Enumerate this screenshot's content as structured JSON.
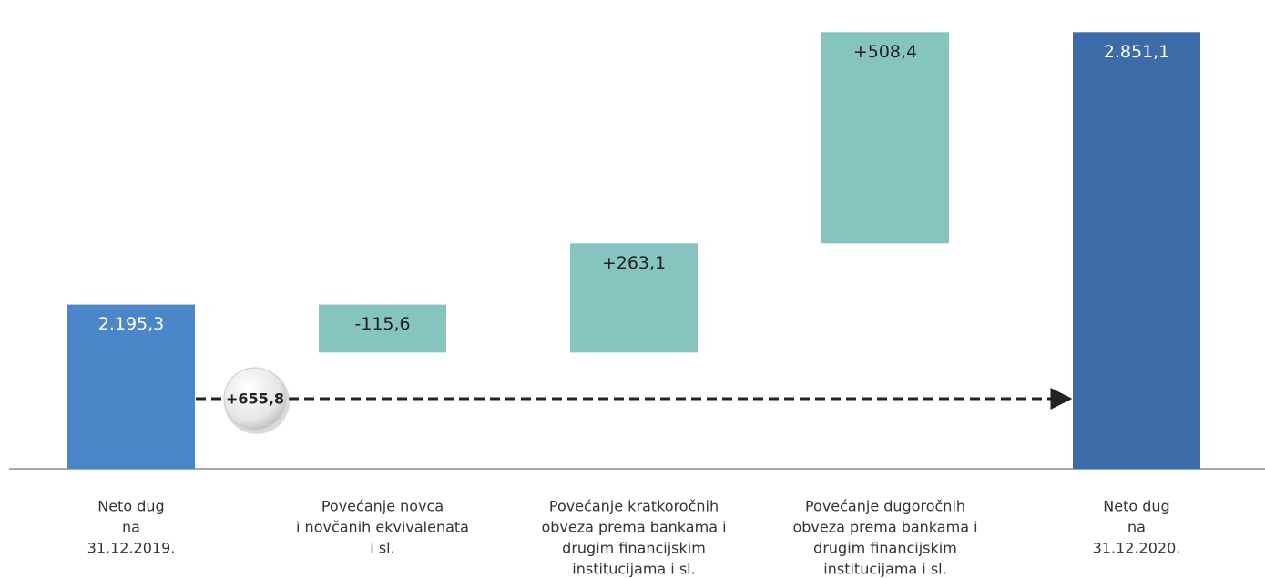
{
  "chart_data": {
    "type": "waterfall",
    "categories": [
      [
        "Neto dug",
        "na",
        "31.12.2019."
      ],
      [
        "Povećanje novca",
        "i novčanih ekvivalenata",
        "i sl."
      ],
      [
        "Povećanje kratkoročnih",
        "obveza prema bankama i",
        "drugim financijskim",
        "institucijama i sl."
      ],
      [
        "Povećanje dugoročnih",
        "obveza prema bankama i",
        "drugim financijskim",
        "institucijama i sl."
      ],
      [
        "Neto dug",
        "na",
        "31.12.2020."
      ]
    ],
    "values": [
      2195.3,
      -115.6,
      263.1,
      508.4,
      2851.1
    ],
    "value_labels": [
      "2.195,3",
      "-115,6",
      "+263,1",
      "+508,4",
      "2.851,1"
    ],
    "measure": [
      "absolute",
      "relative",
      "relative",
      "relative",
      "total"
    ],
    "colors": [
      "#4a86c8",
      "#86c4bf",
      "#86c4bf",
      "#86c4bf",
      "#3b6ba8"
    ],
    "ylim": [
      1800,
      2900
    ],
    "annotation": "+655,8"
  }
}
